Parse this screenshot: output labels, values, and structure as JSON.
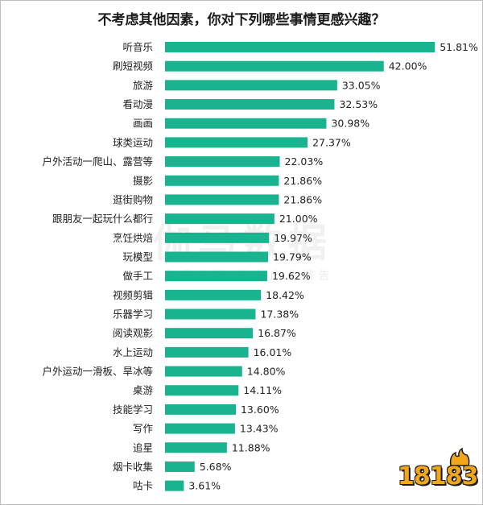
{
  "chart_data": {
    "type": "bar",
    "orientation": "horizontal",
    "title": "不考虑其他因素，你对下列哪些事情更感兴趣？",
    "categories": [
      "听音乐",
      "刷短视频",
      "旅游",
      "看动漫",
      "画画",
      "球类运动",
      "户外活动一爬山、露营等",
      "摄影",
      "逛街购物",
      "跟朋友一起玩什么都行",
      "烹饪烘焙",
      "玩模型",
      "做手工",
      "视频剪辑",
      "乐器学习",
      "阅读观影",
      "水上运动",
      "户外运动一滑板、旱冰等",
      "桌游",
      "技能学习",
      "写作",
      "追星",
      "烟卡收集",
      "咕卡"
    ],
    "values": [
      51.81,
      42.0,
      33.05,
      32.53,
      30.98,
      27.37,
      22.03,
      21.86,
      21.86,
      21.0,
      19.97,
      19.79,
      19.62,
      18.42,
      17.38,
      16.87,
      16.01,
      14.8,
      14.11,
      13.6,
      13.43,
      11.88,
      5.68,
      3.61
    ],
    "value_labels": [
      "51.81%",
      "42.00%",
      "33.05%",
      "32.53%",
      "30.98%",
      "27.37%",
      "22.03%",
      "21.86%",
      "21.86%",
      "21.00%",
      "19.97%",
      "19.79%",
      "19.62%",
      "18.42%",
      "17.38%",
      "16.87%",
      "16.01%",
      "14.80%",
      "14.11%",
      "13.60%",
      "13.43%",
      "11.88%",
      "5.68%",
      "3.61%"
    ],
    "unit": "%",
    "bar_color": "#19b38f",
    "grid": false,
    "legend": "none"
  },
  "watermark": {
    "main": "伽马数据",
    "sub": "伽马数据·游戏产业报告"
  },
  "logo": {
    "text": "18183"
  }
}
